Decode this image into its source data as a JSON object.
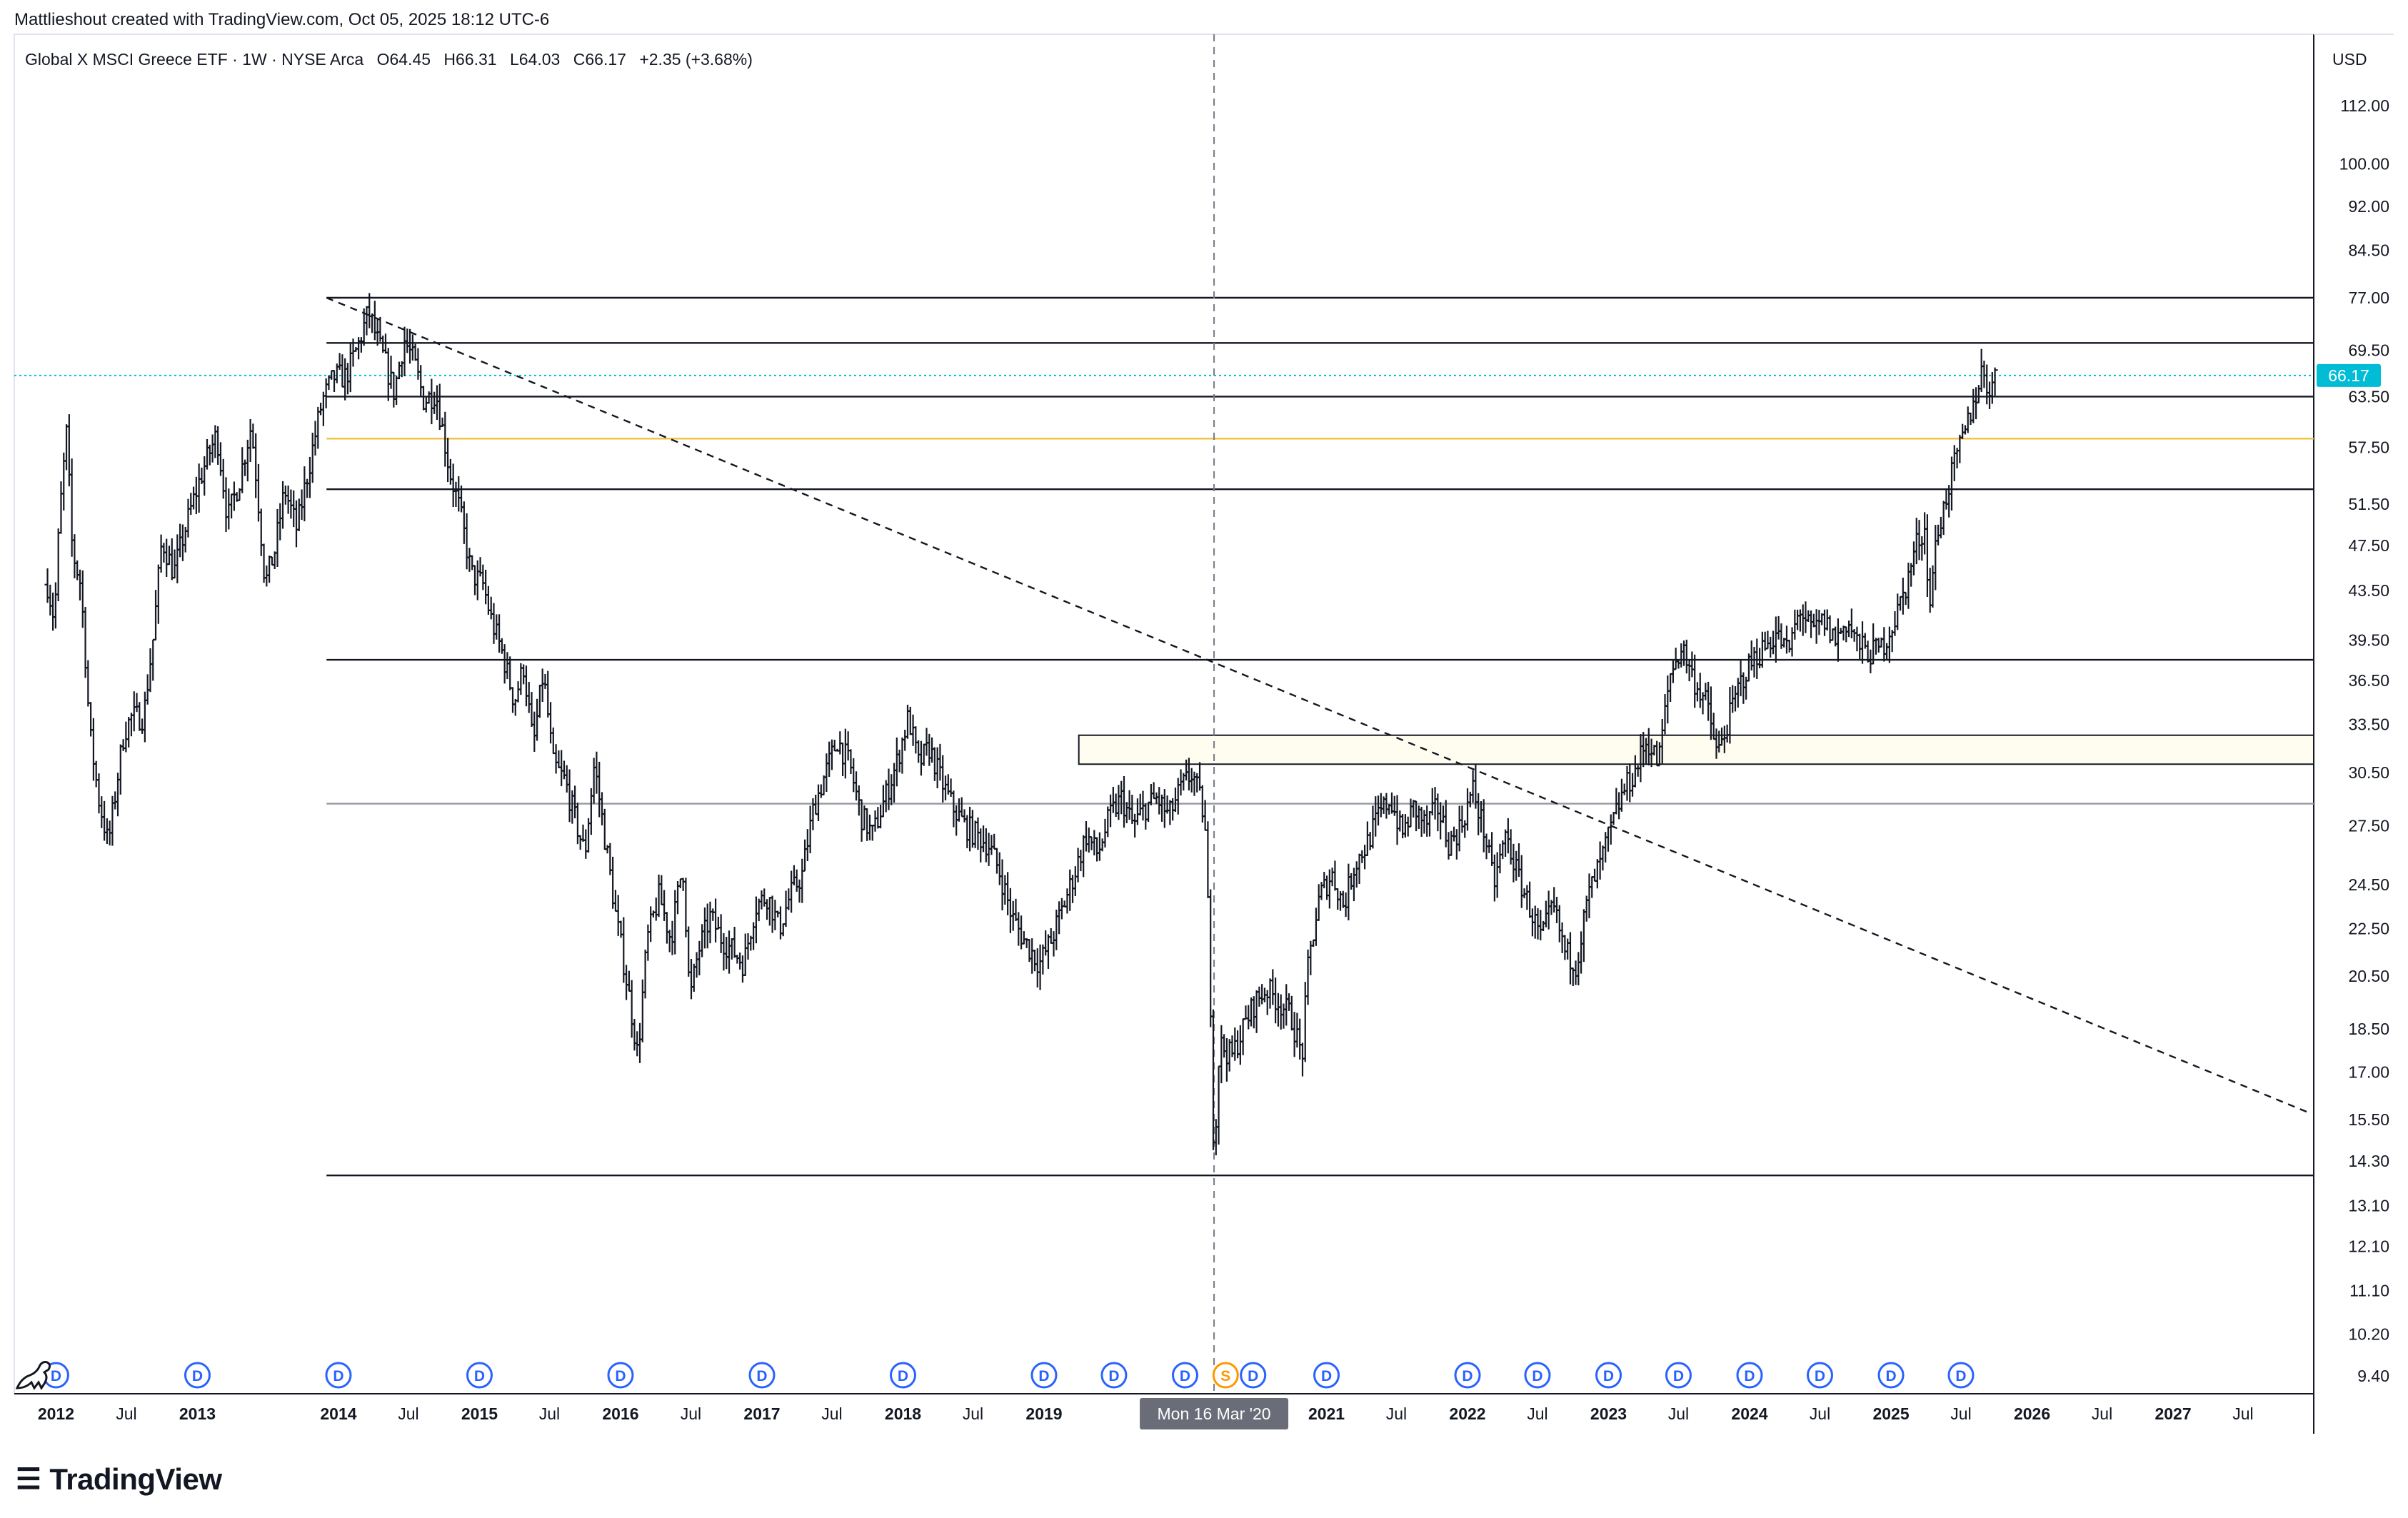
{
  "header": {
    "credit": "Mattlieshout created with TradingView.com, Oct 05, 2025 18:12 UTC-6"
  },
  "legend": {
    "symbol": "Global X MSCI Greece ETF · 1W · NYSE Arca",
    "o_label": "O",
    "o_value": "64.45",
    "h_label": "H",
    "h_value": "66.31",
    "l_label": "L",
    "l_value": "64.03",
    "c_label": "C",
    "c_value": "66.17",
    "change": "+2.35 (+3.68%)"
  },
  "price_scale": {
    "currency": "USD",
    "last_price_label": "66.17",
    "last_price_color": "#00bcd4"
  },
  "crosshair": {
    "date_label": "Mon 16 Mar '20"
  },
  "branding": {
    "logo_text": "TradingView"
  },
  "colors": {
    "candle": "#131722",
    "support_line": "#131722",
    "yellow_line": "#f0c040",
    "gray_line": "#9598a1",
    "zone_fill": "#fffdf0",
    "dividend_marker": "#2962ff",
    "split_marker": "#ff9800",
    "last_price_line": "#00bcd4"
  },
  "chart_data": {
    "type": "candlestick",
    "title": "Global X MSCI Greece ETF · 1W · NYSE Arca",
    "scale": "log",
    "ylim": [
      9.0,
      118.0
    ],
    "xlim": [
      "2011-09-15",
      "2027-12-31"
    ],
    "y_ticks": [
      "112.00",
      "100.00",
      "92.00",
      "84.50",
      "77.00",
      "69.50",
      "63.50",
      "57.50",
      "51.50",
      "47.50",
      "43.50",
      "39.50",
      "36.50",
      "33.50",
      "30.50",
      "27.50",
      "24.50",
      "22.50",
      "20.50",
      "18.50",
      "17.00",
      "15.50",
      "14.30",
      "13.10",
      "12.10",
      "11.10",
      "10.20",
      "9.40"
    ],
    "x_ticks": [
      {
        "label": "2012",
        "date": "2012-01-01",
        "bold": true
      },
      {
        "label": "Jul",
        "date": "2012-07-01",
        "bold": false
      },
      {
        "label": "2013",
        "date": "2013-01-01",
        "bold": true
      },
      {
        "label": "2014",
        "date": "2014-01-01",
        "bold": true
      },
      {
        "label": "Jul",
        "date": "2014-07-01",
        "bold": false
      },
      {
        "label": "2015",
        "date": "2015-01-01",
        "bold": true
      },
      {
        "label": "Jul",
        "date": "2015-07-01",
        "bold": false
      },
      {
        "label": "2016",
        "date": "2016-01-01",
        "bold": true
      },
      {
        "label": "Jul",
        "date": "2016-07-01",
        "bold": false
      },
      {
        "label": "2017",
        "date": "2017-01-01",
        "bold": true
      },
      {
        "label": "Jul",
        "date": "2017-07-01",
        "bold": false
      },
      {
        "label": "2018",
        "date": "2018-01-01",
        "bold": true
      },
      {
        "label": "Jul",
        "date": "2018-07-01",
        "bold": false
      },
      {
        "label": "2019",
        "date": "2019-01-01",
        "bold": true
      },
      {
        "label": "2021",
        "date": "2021-01-01",
        "bold": true
      },
      {
        "label": "Jul",
        "date": "2021-07-01",
        "bold": false
      },
      {
        "label": "2022",
        "date": "2022-01-01",
        "bold": true
      },
      {
        "label": "Jul",
        "date": "2022-07-01",
        "bold": false
      },
      {
        "label": "2023",
        "date": "2023-01-01",
        "bold": true
      },
      {
        "label": "Jul",
        "date": "2023-07-01",
        "bold": false
      },
      {
        "label": "2024",
        "date": "2024-01-01",
        "bold": true
      },
      {
        "label": "Jul",
        "date": "2024-07-01",
        "bold": false
      },
      {
        "label": "2025",
        "date": "2025-01-01",
        "bold": true
      },
      {
        "label": "Jul",
        "date": "2025-07-01",
        "bold": false
      },
      {
        "label": "2026",
        "date": "2026-01-01",
        "bold": true
      },
      {
        "label": "Jul",
        "date": "2026-07-01",
        "bold": false
      },
      {
        "label": "2027",
        "date": "2027-01-01",
        "bold": true
      },
      {
        "label": "Jul",
        "date": "2027-07-01",
        "bold": false
      }
    ],
    "price_path": [
      [
        "2011-12-10",
        44.0
      ],
      [
        "2011-12-28",
        41.0
      ],
      [
        "2012-01-10",
        50.0
      ],
      [
        "2012-01-28",
        59.0
      ],
      [
        "2012-02-12",
        47.0
      ],
      [
        "2012-03-05",
        44.0
      ],
      [
        "2012-03-28",
        33.0
      ],
      [
        "2012-04-20",
        29.0
      ],
      [
        "2012-05-15",
        26.5
      ],
      [
        "2012-06-01",
        29.0
      ],
      [
        "2012-06-25",
        33.0
      ],
      [
        "2012-07-15",
        34.0
      ],
      [
        "2012-08-15",
        34.0
      ],
      [
        "2012-09-10",
        40.0
      ],
      [
        "2012-10-01",
        48.0
      ],
      [
        "2012-11-01",
        45.0
      ],
      [
        "2012-12-15",
        51.0
      ],
      [
        "2013-01-15",
        55.0
      ],
      [
        "2013-02-20",
        59.0
      ],
      [
        "2013-03-20",
        50.0
      ],
      [
        "2013-04-20",
        54.0
      ],
      [
        "2013-05-20",
        60.0
      ],
      [
        "2013-06-25",
        44.0
      ],
      [
        "2013-07-20",
        47.0
      ],
      [
        "2013-08-15",
        53.0
      ],
      [
        "2013-09-15",
        49.0
      ],
      [
        "2013-10-20",
        56.0
      ],
      [
        "2013-11-20",
        63.0
      ],
      [
        "2013-12-20",
        66.0
      ],
      [
        "2014-01-20",
        66.0
      ],
      [
        "2014-02-20",
        70.0
      ],
      [
        "2014-03-20",
        75.0
      ],
      [
        "2014-04-10",
        71.0
      ],
      [
        "2014-05-01",
        68.0
      ],
      [
        "2014-05-25",
        64.0
      ],
      [
        "2014-06-20",
        71.0
      ],
      [
        "2014-07-15",
        68.0
      ],
      [
        "2014-08-10",
        63.0
      ],
      [
        "2014-09-10",
        64.0
      ],
      [
        "2014-10-15",
        55.0
      ],
      [
        "2014-11-10",
        51.0
      ],
      [
        "2014-12-10",
        45.0
      ],
      [
        "2015-01-10",
        44.0
      ],
      [
        "2015-02-01",
        41.0
      ],
      [
        "2015-03-01",
        38.5
      ],
      [
        "2015-04-01",
        35.0
      ],
      [
        "2015-04-25",
        37.5
      ],
      [
        "2015-05-20",
        32.0
      ],
      [
        "2015-06-15",
        37.0
      ],
      [
        "2015-07-10",
        31.0
      ],
      [
        "2015-08-10",
        30.0
      ],
      [
        "2015-09-10",
        27.5
      ],
      [
        "2015-10-01",
        26.0
      ],
      [
        "2015-10-25",
        31.0
      ],
      [
        "2015-11-20",
        27.0
      ],
      [
        "2015-12-20",
        23.0
      ],
      [
        "2016-01-20",
        20.0
      ],
      [
        "2016-02-15",
        17.5
      ],
      [
        "2016-03-10",
        22.0
      ],
      [
        "2016-04-10",
        24.0
      ],
      [
        "2016-05-10",
        22.0
      ],
      [
        "2016-06-10",
        25.5
      ],
      [
        "2016-06-28",
        19.5
      ],
      [
        "2016-07-20",
        21.5
      ],
      [
        "2016-08-20",
        23.0
      ],
      [
        "2016-09-20",
        22.0
      ],
      [
        "2016-10-20",
        21.5
      ],
      [
        "2016-11-15",
        21.0
      ],
      [
        "2016-12-15",
        23.5
      ],
      [
        "2017-01-15",
        24.0
      ],
      [
        "2017-02-15",
        22.5
      ],
      [
        "2017-03-15",
        24.0
      ],
      [
        "2017-04-15",
        25.0
      ],
      [
        "2017-05-15",
        28.5
      ],
      [
        "2017-06-15",
        30.5
      ],
      [
        "2017-07-15",
        32.5
      ],
      [
        "2017-08-15",
        31.0
      ],
      [
        "2017-09-15",
        28.0
      ],
      [
        "2017-10-15",
        27.0
      ],
      [
        "2017-11-15",
        29.0
      ],
      [
        "2017-12-15",
        31.0
      ],
      [
        "2018-01-15",
        34.0
      ],
      [
        "2018-02-10",
        31.0
      ],
      [
        "2018-03-10",
        32.0
      ],
      [
        "2018-04-10",
        30.0
      ],
      [
        "2018-05-10",
        28.5
      ],
      [
        "2018-06-10",
        27.5
      ],
      [
        "2018-07-10",
        27.0
      ],
      [
        "2018-08-10",
        26.5
      ],
      [
        "2018-09-10",
        25.0
      ],
      [
        "2018-10-10",
        23.0
      ],
      [
        "2018-11-10",
        22.0
      ],
      [
        "2018-12-20",
        21.0
      ],
      [
        "2019-01-20",
        22.0
      ],
      [
        "2019-02-20",
        23.5
      ],
      [
        "2019-03-20",
        25.0
      ],
      [
        "2019-04-20",
        27.0
      ],
      [
        "2019-05-20",
        26.0
      ],
      [
        "2019-06-20",
        28.0
      ],
      [
        "2019-07-20",
        29.0
      ],
      [
        "2019-08-20",
        27.5
      ],
      [
        "2019-09-20",
        28.5
      ],
      [
        "2019-10-20",
        29.0
      ],
      [
        "2019-11-20",
        28.0
      ],
      [
        "2019-12-20",
        29.5
      ],
      [
        "2020-01-20",
        30.5
      ],
      [
        "2020-02-20",
        28.0
      ],
      [
        "2020-03-01",
        23.0
      ],
      [
        "2020-03-16",
        14.0
      ],
      [
        "2020-03-30",
        18.0
      ],
      [
        "2020-04-30",
        17.5
      ],
      [
        "2020-05-30",
        18.5
      ],
      [
        "2020-06-30",
        19.5
      ],
      [
        "2020-07-30",
        20.0
      ],
      [
        "2020-08-30",
        19.5
      ],
      [
        "2020-09-30",
        19.0
      ],
      [
        "2020-10-30",
        17.5
      ],
      [
        "2020-11-15",
        21.0
      ],
      [
        "2020-12-15",
        24.0
      ],
      [
        "2021-01-15",
        25.0
      ],
      [
        "2021-02-15",
        23.5
      ],
      [
        "2021-03-15",
        25.5
      ],
      [
        "2021-04-15",
        26.5
      ],
      [
        "2021-05-15",
        28.0
      ],
      [
        "2021-06-15",
        29.0
      ],
      [
        "2021-07-15",
        27.0
      ],
      [
        "2021-08-15",
        28.5
      ],
      [
        "2021-09-15",
        27.5
      ],
      [
        "2021-10-15",
        28.5
      ],
      [
        "2021-11-15",
        26.5
      ],
      [
        "2021-12-15",
        27.5
      ],
      [
        "2022-01-15",
        29.5
      ],
      [
        "2022-02-15",
        27.0
      ],
      [
        "2022-03-10",
        24.5
      ],
      [
        "2022-04-10",
        27.0
      ],
      [
        "2022-05-10",
        25.0
      ],
      [
        "2022-06-10",
        23.5
      ],
      [
        "2022-07-10",
        22.0
      ],
      [
        "2022-08-10",
        23.5
      ],
      [
        "2022-09-10",
        21.5
      ],
      [
        "2022-10-10",
        21.0
      ],
      [
        "2022-11-10",
        24.0
      ],
      [
        "2022-12-10",
        25.5
      ],
      [
        "2023-01-10",
        27.5
      ],
      [
        "2023-02-10",
        29.5
      ],
      [
        "2023-03-10",
        30.5
      ],
      [
        "2023-04-10",
        32.5
      ],
      [
        "2023-05-10",
        31.0
      ],
      [
        "2023-06-10",
        37.0
      ],
      [
        "2023-07-10",
        39.0
      ],
      [
        "2023-08-10",
        36.5
      ],
      [
        "2023-09-10",
        35.0
      ],
      [
        "2023-10-10",
        31.5
      ],
      [
        "2023-11-10",
        34.0
      ],
      [
        "2023-12-10",
        36.5
      ],
      [
        "2024-01-10",
        38.0
      ],
      [
        "2024-02-10",
        39.0
      ],
      [
        "2024-03-10",
        40.0
      ],
      [
        "2024-04-10",
        38.5
      ],
      [
        "2024-05-10",
        42.0
      ],
      [
        "2024-06-10",
        40.0
      ],
      [
        "2024-07-10",
        41.0
      ],
      [
        "2024-08-10",
        39.5
      ],
      [
        "2024-09-10",
        41.0
      ],
      [
        "2024-10-10",
        39.0
      ],
      [
        "2024-11-10",
        38.5
      ],
      [
        "2024-12-10",
        39.0
      ],
      [
        "2025-01-10",
        41.0
      ],
      [
        "2025-02-10",
        44.0
      ],
      [
        "2025-03-10",
        48.0
      ],
      [
        "2025-04-01",
        49.0
      ],
      [
        "2025-04-10",
        41.0
      ],
      [
        "2025-04-20",
        46.0
      ],
      [
        "2025-05-10",
        50.0
      ],
      [
        "2025-06-10",
        55.0
      ],
      [
        "2025-07-10",
        59.0
      ],
      [
        "2025-08-10",
        64.0
      ],
      [
        "2025-08-25",
        67.0
      ],
      [
        "2025-09-10",
        64.5
      ],
      [
        "2025-09-25",
        65.5
      ],
      [
        "2025-10-03",
        66.17
      ]
    ],
    "horizontal_lines": [
      {
        "price": 77.0,
        "start": "2013-12-01",
        "style": "solid",
        "color": "#131722"
      },
      {
        "price": 70.5,
        "start": "2013-12-01",
        "style": "solid",
        "color": "#131722"
      },
      {
        "price": 63.5,
        "start": "2013-12-01",
        "style": "solid",
        "color": "#131722"
      },
      {
        "price": 58.5,
        "start": "2013-12-01",
        "style": "solid",
        "color": "#f0c040"
      },
      {
        "price": 53.0,
        "start": "2013-12-01",
        "style": "solid",
        "color": "#131722"
      },
      {
        "price": 38.0,
        "start": "2013-12-01",
        "style": "solid",
        "color": "#131722"
      },
      {
        "price": 28.7,
        "start": "2013-12-01",
        "style": "solid",
        "color": "#9598a1"
      },
      {
        "price": 13.9,
        "start": "2013-12-01",
        "style": "solid",
        "color": "#131722"
      }
    ],
    "zone": {
      "low": 31.0,
      "high": 32.8,
      "start": "2019-04-01"
    },
    "trendline": {
      "start": [
        "2013-12-01",
        77.0
      ],
      "end": [
        "2027-12-20",
        15.7
      ],
      "style": "dashed"
    },
    "crosshair_date": "2020-03-16",
    "dividend_markers": [
      "2012-01-01",
      "2013-01-01",
      "2014-01-01",
      "2015-01-01",
      "2016-01-01",
      "2017-01-01",
      "2018-01-01",
      "2019-01-01",
      "2019-07-01",
      "2020-01-01",
      "2020-06-25",
      "2021-01-01",
      "2022-01-01",
      "2022-07-01",
      "2023-01-01",
      "2023-07-01",
      "2024-01-01",
      "2024-07-01",
      "2025-01-01",
      "2025-07-01"
    ],
    "dividend_marker_label": "D",
    "split_marker": {
      "date": "2020-04-15",
      "label": "S"
    },
    "last_price": 66.17
  }
}
